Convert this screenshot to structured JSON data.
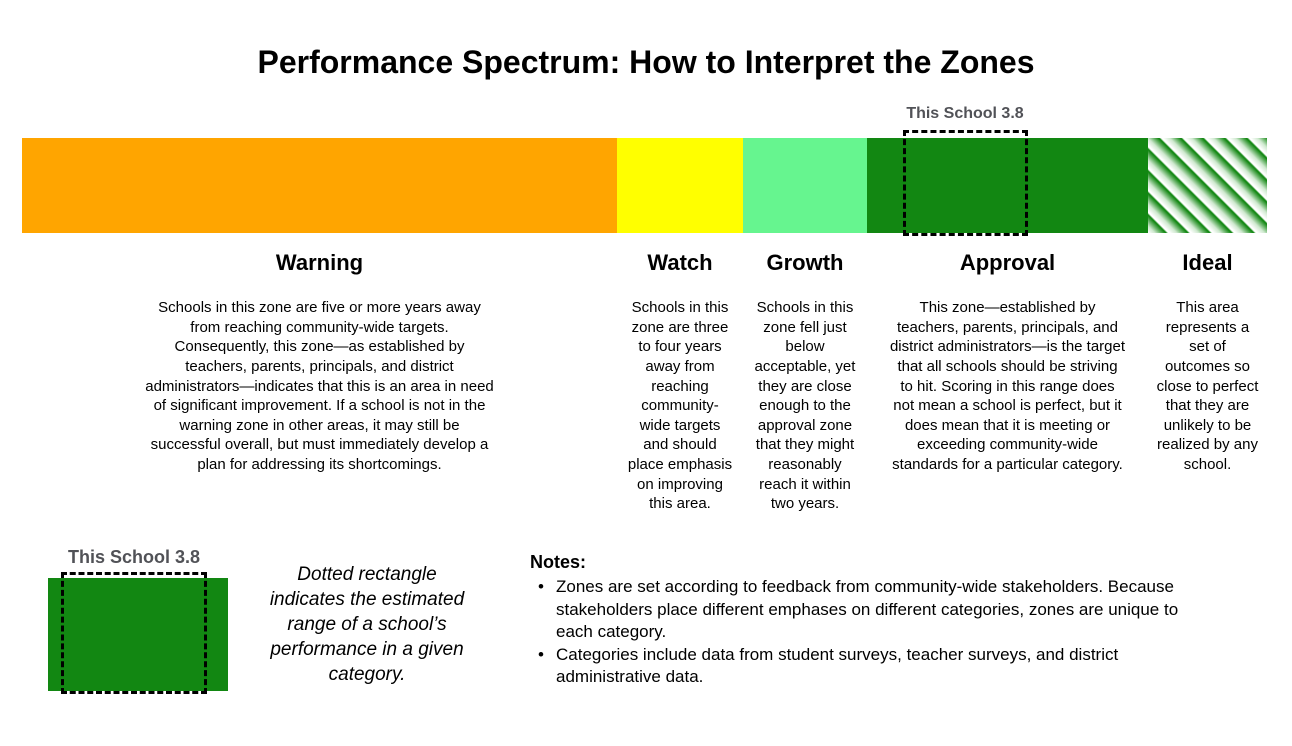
{
  "title": "Performance Spectrum: How to Interpret the Zones",
  "bar": {
    "marker": {
      "label": "This School 3.8"
    },
    "zones": [
      {
        "name": "Warning",
        "color": "#FFA500",
        "description": "Schools in this zone are five or more years away from reaching community-wide targets. Consequently, this zone—as established by teachers, parents, principals, and district administrators—indicates that this is an area in need of significant improvement. If a school is not in the warning zone in other areas, it may still be successful overall, but must immediately develop a plan for addressing its shortcomings."
      },
      {
        "name": "Watch",
        "color": "#FFFF00",
        "description": "Schools in this zone are three to four years away from reaching community-wide targets and should place emphasis on improving this area."
      },
      {
        "name": "Growth",
        "color": "#66F58F",
        "description": "Schools in this zone fell just below acceptable, yet they are close enough to the approval zone that they might reasonably reach it within two years."
      },
      {
        "name": "Approval",
        "color": "#128712",
        "description": "This zone—established by teachers, parents, principals, and district administrators—is the target that all schools should be striving to hit. Scoring in this range does not mean a school is perfect, but it does mean that it is meeting or exceeding community-wide standards for a particular category."
      },
      {
        "name": "Ideal",
        "color": "#128712",
        "pattern": "diagonal-gradient-stripes",
        "description": "This area represents a set of outcomes so close to perfect that they are unlikely to be realized by any school."
      }
    ]
  },
  "legend": {
    "marker_label": "This School 3.8",
    "swatch_color": "#128712",
    "caption": "Dotted rectangle indicates the estimated range of a school’s performance in a given category."
  },
  "notes": {
    "heading": "Notes:",
    "items": [
      "Zones are set according to feedback from community-wide stakeholders. Because stakeholders place different emphases on different categories, zones are unique to each category.",
      "Categories include data from student surveys, teacher surveys, and district administrative data."
    ]
  },
  "colors": {
    "marker_label_text": "#515257",
    "marker_border": "#000000"
  }
}
